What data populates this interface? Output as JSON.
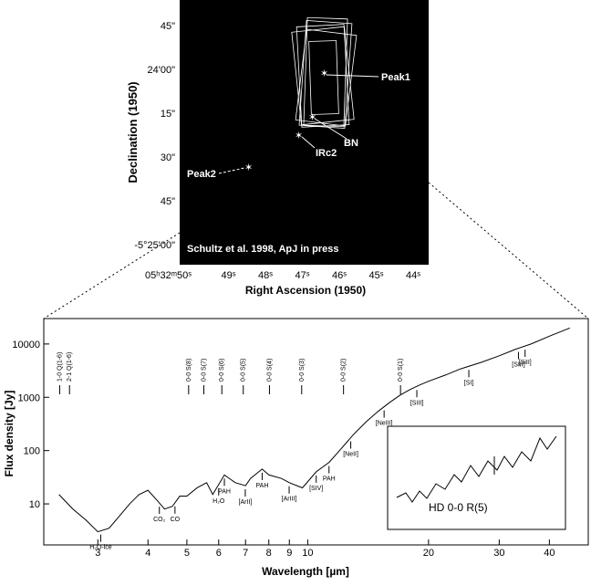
{
  "image_panel": {
    "y_label": "Declination (1950)",
    "x_label": "Right Ascension (1950)",
    "y_ticks": [
      "45\"",
      "24'00\"",
      "15\"",
      "30\"",
      "45\"",
      "-5°25'00\""
    ],
    "x_ticks": [
      "05ʰ32ᵐ50ˢ",
      "49ˢ",
      "48ˢ",
      "47ˢ",
      "46ˢ",
      "45ˢ",
      "44ˢ"
    ],
    "sources": [
      "Peak1",
      "BN",
      "IRc2",
      "Peak2"
    ],
    "credit": "Schultz et al. 1998, ApJ in press"
  },
  "chart_data": {
    "type": "line",
    "x_label": "Wavelength [µm]",
    "y_label": "Flux density [Jy]",
    "log_x": true,
    "log_y": true,
    "xlim": [
      2.2,
      50
    ],
    "ylim": [
      1.7,
      30000
    ],
    "xticks": [
      3,
      4,
      5,
      6,
      7,
      8,
      9,
      10,
      20,
      30,
      40
    ],
    "yticks": [
      10,
      100,
      1000,
      10000
    ],
    "series": [
      {
        "color": "#000000",
        "x": [
          2.4,
          2.6,
          2.8,
          3.0,
          3.2,
          3.4,
          3.6,
          3.8,
          4.0,
          4.2,
          4.4,
          4.6,
          4.8,
          5.0,
          5.3,
          5.6,
          5.8,
          6.2,
          6.6,
          7.0,
          7.2,
          7.7,
          8.0,
          8.6,
          9.0,
          9.7,
          10.5,
          11.3,
          12,
          13,
          14,
          15,
          16,
          17,
          18,
          19,
          20,
          22,
          24,
          27,
          30,
          33,
          36,
          40,
          45
        ],
        "values": [
          15,
          8,
          5,
          3,
          3.5,
          6,
          10,
          15,
          18,
          12,
          8,
          9,
          14,
          14,
          20,
          25,
          15,
          35,
          25,
          22,
          30,
          45,
          35,
          30,
          25,
          20,
          40,
          60,
          100,
          200,
          350,
          550,
          800,
          1100,
          1400,
          1700,
          2000,
          2600,
          3400,
          4500,
          6000,
          8000,
          10000,
          14000,
          20000
        ]
      }
    ],
    "annotations": [
      {
        "label": "H₂O-ice",
        "x": 3.05
      },
      {
        "label": "CO₂",
        "x": 4.27
      },
      {
        "label": "CO",
        "x": 4.67
      },
      {
        "label": "H₂O",
        "x": 6.0
      },
      {
        "label": "PAH",
        "x": 6.2
      },
      {
        "label": "[ArII]",
        "x": 6.99
      },
      {
        "label": "PAH",
        "x": 7.7
      },
      {
        "label": "[ArIII]",
        "x": 8.99
      },
      {
        "label": "[SIV]",
        "x": 10.5
      },
      {
        "label": "PAH",
        "x": 11.3
      },
      {
        "label": "[NeII]",
        "x": 12.8
      },
      {
        "label": "[NeIII]",
        "x": 15.5
      },
      {
        "label": "[SIII]",
        "x": 18.7
      },
      {
        "label": "[SI]",
        "x": 25.2
      },
      {
        "label": "[SIII]",
        "x": 33.5
      },
      {
        "label": "[SiII]",
        "x": 34.8
      }
    ],
    "h2_lines": [
      {
        "label": "1-0 Q(1-6)",
        "x": 2.41
      },
      {
        "label": "2-1 Q(1-6)",
        "x": 2.55
      },
      {
        "label": "0-0 S(8)",
        "x": 5.05
      },
      {
        "label": "0-0 S(7)",
        "x": 5.51
      },
      {
        "label": "0-0 S(6)",
        "x": 6.11
      },
      {
        "label": "0-0 S(5)",
        "x": 6.91
      },
      {
        "label": "0-0 S(4)",
        "x": 8.03
      },
      {
        "label": "0-0 S(3)",
        "x": 9.66
      },
      {
        "label": "0-0 S(2)",
        "x": 12.28
      },
      {
        "label": "0-0 S(1)",
        "x": 17.03
      }
    ],
    "inset_label": "HD 0-0 R(5)"
  }
}
